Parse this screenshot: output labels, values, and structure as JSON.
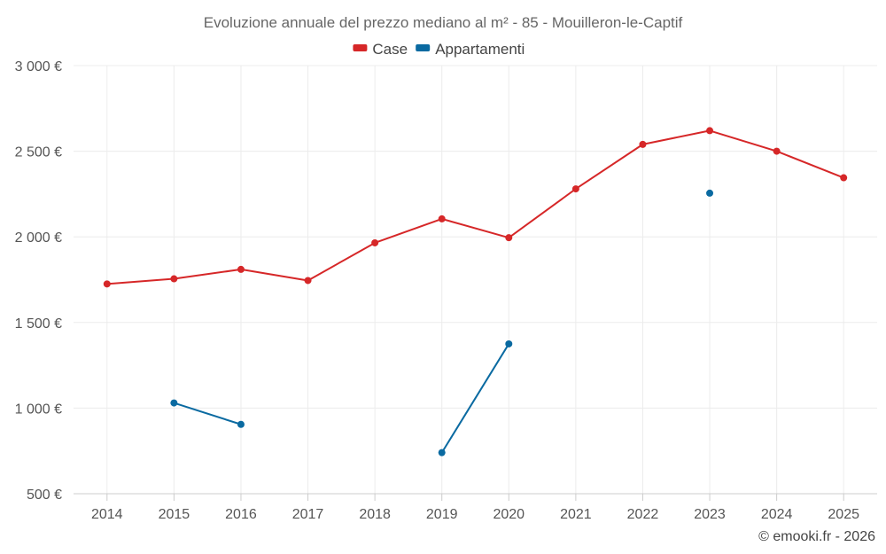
{
  "chart_data": {
    "type": "line",
    "title": "Evoluzione annuale del prezzo mediano al m² - 85 - Mouilleron-le-Captif",
    "xlabel": "",
    "ylabel": "",
    "categories": [
      "2014",
      "2015",
      "2016",
      "2017",
      "2018",
      "2019",
      "2020",
      "2021",
      "2022",
      "2023",
      "2024",
      "2025"
    ],
    "ylim": [
      500,
      3000
    ],
    "yticks": [
      {
        "value": 500,
        "label": "500 €"
      },
      {
        "value": 1000,
        "label": "1 000 €"
      },
      {
        "value": 1500,
        "label": "1 500 €"
      },
      {
        "value": 2000,
        "label": "2 000 €"
      },
      {
        "value": 2500,
        "label": "2 500 €"
      },
      {
        "value": 3000,
        "label": "3 000 €"
      }
    ],
    "grid": true,
    "legend_position": "top-center",
    "series": [
      {
        "name": "Case",
        "color": "#d62728",
        "values": [
          1725,
          1755,
          1810,
          1745,
          1965,
          2105,
          1995,
          2280,
          2540,
          2620,
          2500,
          2345
        ]
      },
      {
        "name": "Appartamenti",
        "color": "#0a6aa1",
        "values": [
          null,
          1030,
          905,
          null,
          null,
          740,
          1375,
          null,
          null,
          2255,
          null,
          null
        ]
      }
    ],
    "credit": "© emooki.fr - 2026"
  }
}
